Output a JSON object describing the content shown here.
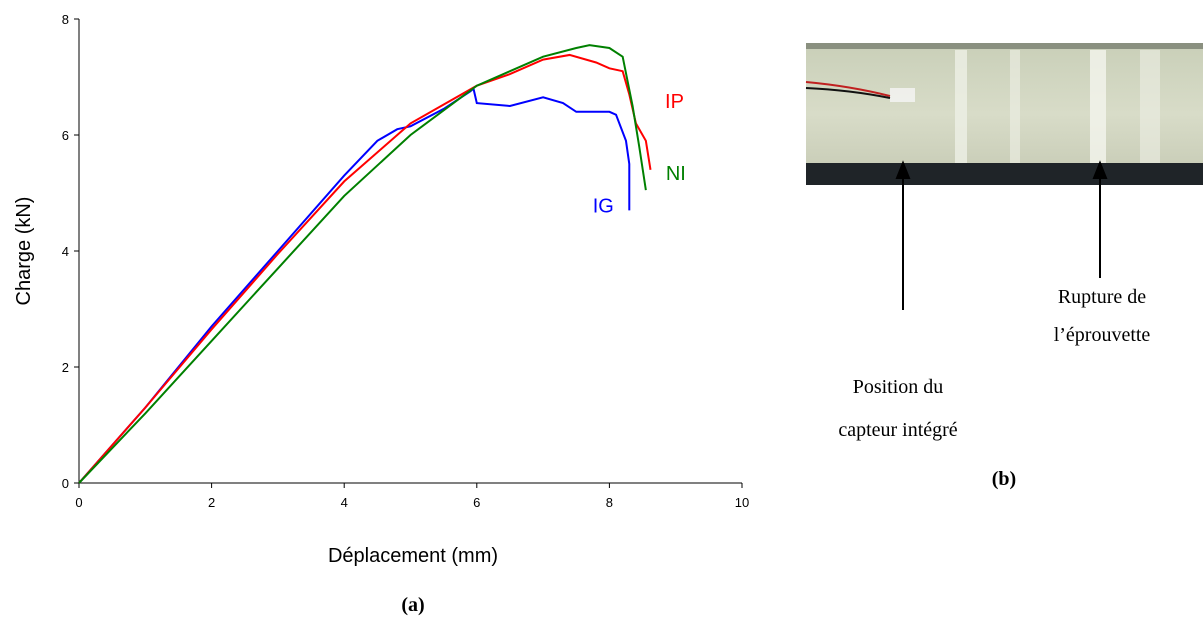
{
  "chart_data": {
    "type": "line",
    "xlabel": "Déplacement (mm)",
    "ylabel": "Charge (kN)",
    "caption": "(a)",
    "xlim": [
      0,
      10
    ],
    "ylim": [
      0,
      8
    ],
    "xticks": [
      0,
      2,
      4,
      6,
      8,
      10
    ],
    "yticks": [
      0,
      2,
      4,
      6,
      8
    ],
    "series": [
      {
        "name": "IG",
        "color": "#0000ff",
        "x": [
          0,
          1,
          2,
          3,
          4,
          4.5,
          4.8,
          5,
          5.5,
          5.9,
          5.95,
          6.0,
          6.5,
          7,
          7.3,
          7.5,
          8,
          8.1,
          8.25,
          8.3,
          8.3
        ],
        "values": [
          0,
          1.3,
          2.7,
          4.0,
          5.3,
          5.9,
          6.1,
          6.15,
          6.45,
          6.75,
          6.8,
          6.55,
          6.5,
          6.65,
          6.55,
          6.4,
          6.4,
          6.35,
          5.9,
          5.5,
          4.7
        ]
      },
      {
        "name": "IP",
        "color": "#ff0000",
        "x": [
          0,
          1,
          2,
          3,
          4,
          5,
          6,
          6.5,
          7,
          7.4,
          7.8,
          8,
          8.2,
          8.3,
          8.4,
          8.55,
          8.62
        ],
        "values": [
          0,
          1.3,
          2.65,
          3.95,
          5.2,
          6.2,
          6.85,
          7.05,
          7.3,
          7.38,
          7.25,
          7.15,
          7.1,
          6.7,
          6.2,
          5.9,
          5.4
        ]
      },
      {
        "name": "NI",
        "color": "#008000",
        "x": [
          0,
          1,
          2,
          3,
          4,
          5,
          6,
          6.5,
          7,
          7.5,
          7.7,
          8,
          8.2,
          8.35,
          8.45,
          8.55
        ],
        "values": [
          0,
          1.2,
          2.45,
          3.7,
          4.95,
          6.0,
          6.85,
          7.1,
          7.35,
          7.5,
          7.55,
          7.5,
          7.35,
          6.5,
          5.8,
          5.05
        ]
      }
    ]
  },
  "photo": {
    "caption": "(b)",
    "rupture": [
      "Rupture de",
      "l’éprouvette"
    ],
    "sensor": [
      "Position du",
      "capteur intégré"
    ]
  }
}
